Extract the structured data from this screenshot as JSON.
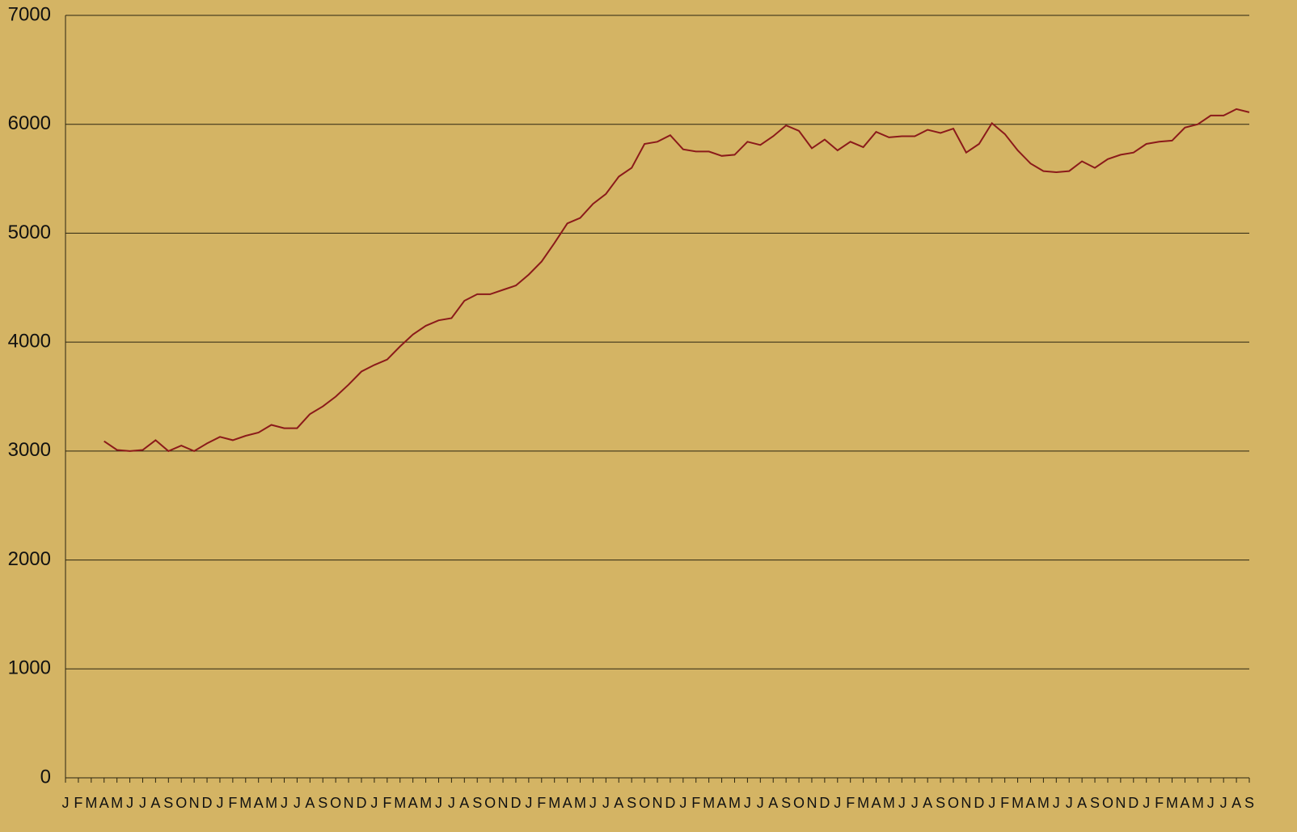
{
  "chart_data": {
    "type": "line",
    "categories": [
      "J",
      "F",
      "M",
      "A",
      "M",
      "J",
      "J",
      "A",
      "S",
      "O",
      "N",
      "D",
      "J",
      "F",
      "M",
      "A",
      "M",
      "J",
      "J",
      "A",
      "S",
      "O",
      "N",
      "D",
      "J",
      "F",
      "M",
      "A",
      "M",
      "J",
      "J",
      "A",
      "S",
      "O",
      "N",
      "D",
      "J",
      "F",
      "M",
      "A",
      "M",
      "J",
      "J",
      "A",
      "S",
      "O",
      "N",
      "D",
      "J",
      "F",
      "M",
      "A",
      "M",
      "J",
      "J",
      "A",
      "S",
      "O",
      "N",
      "D",
      "J",
      "F",
      "M",
      "A",
      "M",
      "J",
      "J",
      "A",
      "S",
      "O",
      "N",
      "D",
      "J",
      "F",
      "M",
      "A",
      "M",
      "J",
      "J",
      "A",
      "S",
      "O",
      "N",
      "D",
      "J",
      "F",
      "M",
      "A",
      "M",
      "J",
      "J",
      "A",
      "S"
    ],
    "series": [
      {
        "color": "#8b1a1a",
        "values": [
          null,
          null,
          null,
          3090,
          3010,
          3000,
          3010,
          3100,
          3000,
          3050,
          3000,
          3070,
          3130,
          3100,
          3140,
          3170,
          3240,
          3210,
          3210,
          3340,
          3410,
          3500,
          3610,
          3730,
          3790,
          3840,
          3960,
          4070,
          4150,
          4200,
          4220,
          4380,
          4440,
          4440,
          4480,
          4520,
          4620,
          4740,
          4910,
          5090,
          5140,
          5270,
          5360,
          5520,
          5600,
          5820,
          5840,
          5900,
          5770,
          5750,
          5750,
          5710,
          5720,
          5840,
          5810,
          5890,
          5990,
          5940,
          5780,
          5860,
          5760,
          5840,
          5790,
          5930,
          5880,
          5890,
          5890,
          5950,
          5920,
          5960,
          5740,
          5820,
          6010,
          5910,
          5760,
          5640,
          5570,
          5560,
          5570,
          5660,
          5600,
          5680,
          5720,
          5740,
          5820,
          5840,
          5850,
          5970,
          6000,
          6080,
          6080,
          6140,
          6110
        ]
      }
    ],
    "ylim": [
      0,
      7000
    ],
    "yticks": [
      0,
      1000,
      2000,
      3000,
      4000,
      5000,
      6000,
      7000
    ],
    "grid": true
  }
}
